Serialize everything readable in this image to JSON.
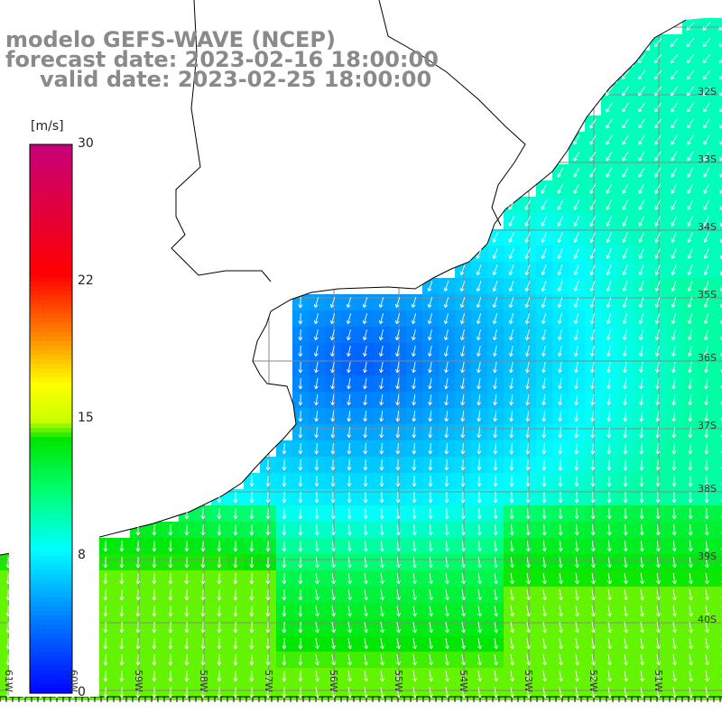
{
  "title": {
    "model": "modelo GEFS-WAVE (NCEP)",
    "forecast": "forecast date: 2023-02-16 18:00:00",
    "valid": "valid date: 2023-02-25 18:00:00"
  },
  "colorbar": {
    "unit": "[m/s]",
    "ticks": [
      {
        "value": 30,
        "label": "30"
      },
      {
        "value": 22,
        "label": "22"
      },
      {
        "value": 15,
        "label": "15"
      },
      {
        "value": 8,
        "label": "8"
      },
      {
        "value": 0,
        "label": "0"
      }
    ],
    "min": 0,
    "max": 30
  },
  "lon_labels": [
    "61W",
    "60W",
    "59W",
    "58W",
    "57W",
    "56W",
    "55W",
    "54W",
    "53W",
    "52W",
    "51W"
  ],
  "lat_labels": [
    "32S",
    "33S",
    "34S",
    "35S",
    "36S",
    "37S",
    "38S",
    "39S",
    "40S"
  ],
  "colors": {
    "land": "#ffffff",
    "coast": "#000000",
    "grid": "#888888",
    "arrow": "#ffffff"
  }
}
